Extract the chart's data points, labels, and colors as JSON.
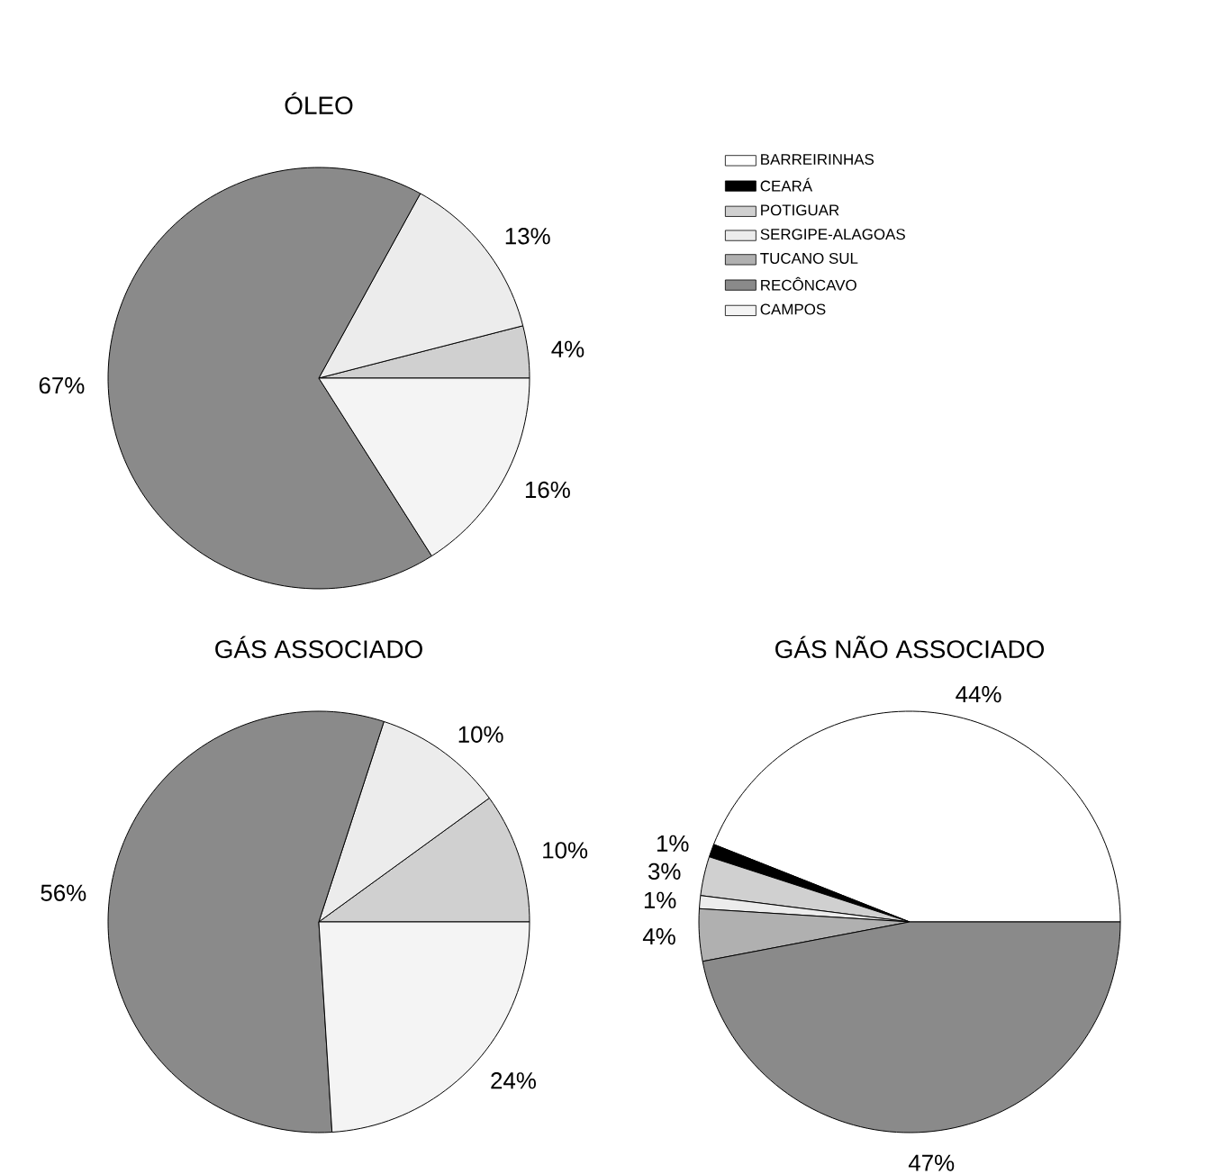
{
  "chart_data": {
    "type": "pie",
    "legend": "right",
    "categories": [
      "BARREIRINHAS",
      "CEARÁ",
      "POTIGUAR",
      "SERGIPE-ALAGOAS",
      "TUCANO SUL",
      "RECÔNCAVO",
      "CAMPOS"
    ],
    "colors": [
      "#ffffff",
      "#000000",
      "#d0d0d0",
      "#ececec",
      "#b0b0b0",
      "#8a8a8a",
      "#f4f4f4"
    ],
    "series": [
      {
        "name": "ÓLEO",
        "values": [
          null,
          null,
          4,
          13,
          null,
          67,
          16
        ],
        "value_labels": [
          null,
          null,
          "4%",
          "13%",
          null,
          "67%",
          "16%"
        ]
      },
      {
        "name": "GÁS ASSOCIADO",
        "values": [
          null,
          null,
          10,
          10,
          null,
          56,
          24
        ],
        "value_labels": [
          null,
          null,
          "10%",
          "10%",
          null,
          "56%",
          "24%"
        ]
      },
      {
        "name": "GÁS NÃO ASSOCIADO",
        "values": [
          44,
          1,
          3,
          1,
          4,
          47,
          null
        ],
        "value_labels": [
          "44%",
          "1%",
          "3%",
          "1%",
          "4%",
          "47%",
          null
        ]
      }
    ]
  }
}
